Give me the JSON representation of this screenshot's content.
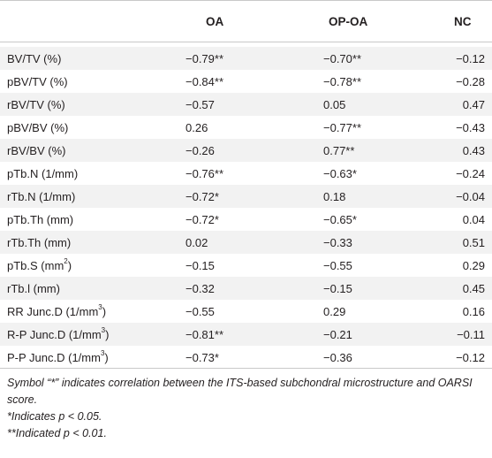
{
  "table": {
    "columns": [
      "",
      "OA",
      "OP-OA",
      "NC"
    ],
    "rows": [
      {
        "label": "BV/TV (%)",
        "oa": "−0.79**",
        "opoa": "−0.70**",
        "nc": "−0.12"
      },
      {
        "label": "pBV/TV (%)",
        "oa": "−0.84**",
        "opoa": "−0.78**",
        "nc": "−0.28"
      },
      {
        "label": "rBV/TV (%)",
        "oa": "−0.57",
        "opoa": "0.05",
        "nc": "0.47"
      },
      {
        "label": "pBV/BV (%)",
        "oa": "0.26",
        "opoa": "−0.77**",
        "nc": "−0.43"
      },
      {
        "label": "rBV/BV (%)",
        "oa": "−0.26",
        "opoa": "0.77**",
        "nc": "0.43"
      },
      {
        "label": "pTb.N (1/mm)",
        "oa": "−0.76**",
        "opoa": "−0.63*",
        "nc": "−0.24"
      },
      {
        "label": "rTb.N (1/mm)",
        "oa": "−0.72*",
        "opoa": "0.18",
        "nc": "−0.04"
      },
      {
        "label": "pTb.Th (mm)",
        "oa": "−0.72*",
        "opoa": "−0.65*",
        "nc": "0.04"
      },
      {
        "label": "rTb.Th (mm)",
        "oa": "0.02",
        "opoa": "−0.33",
        "nc": "0.51"
      },
      {
        "label": "pTb.S (mm",
        "label_sup": "2",
        "label_end": ")",
        "oa": "−0.15",
        "opoa": "−0.55",
        "nc": "0.29"
      },
      {
        "label": "rTb.l (mm)",
        "oa": "−0.32",
        "opoa": "−0.15",
        "nc": "0.45"
      },
      {
        "label": "RR Junc.D (1/mm",
        "label_sup": "3",
        "label_end": ")",
        "oa": "−0.55",
        "opoa": "0.29",
        "nc": "0.16"
      },
      {
        "label": "R-P Junc.D (1/mm",
        "label_sup": "3",
        "label_end": ")",
        "oa": "−0.81**",
        "opoa": "−0.21",
        "nc": "−0.11"
      },
      {
        "label": "P-P Junc.D (1/mm",
        "label_sup": "3",
        "label_end": ")",
        "oa": "−0.73*",
        "opoa": "−0.36",
        "nc": "−0.12"
      }
    ]
  },
  "footnotes": [
    "Symbol “*” indicates correlation between the ITS-based subchondral microstructure and OARSI score.",
    "*Indicates p < 0.05.",
    "**Indicated p < 0.01."
  ],
  "colors": {
    "stripe": "#f2f2f2",
    "rule": "#c9c9c9",
    "text": "#231f20"
  }
}
